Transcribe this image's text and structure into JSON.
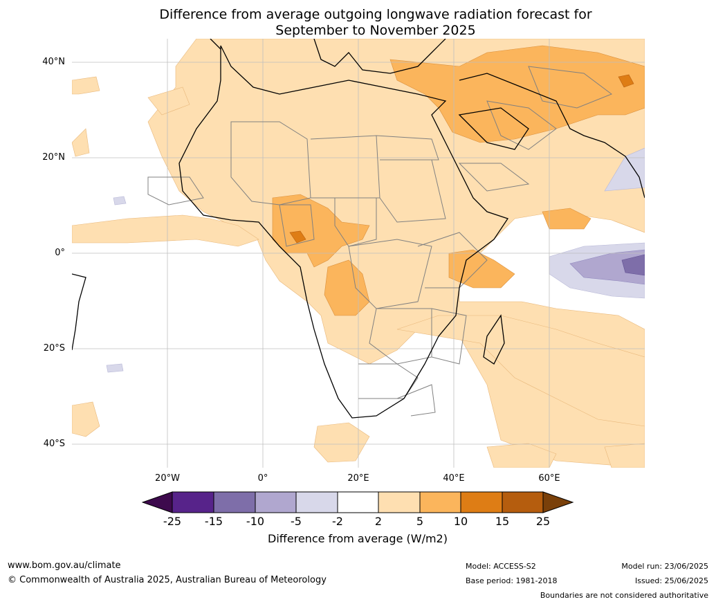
{
  "title_line1": "Difference from average outgoing longwave radiation forecast for",
  "title_line2": "September to November 2025",
  "lat_labels": [
    "40°N",
    "20°N",
    "0°",
    "20°S",
    "40°S"
  ],
  "lon_labels": [
    "20°W",
    "0°",
    "20°E",
    "40°E",
    "60°E"
  ],
  "colorbar": {
    "ticks": [
      "-25",
      "-15",
      "-10",
      "-5",
      "-2",
      "2",
      "5",
      "10",
      "15",
      "25"
    ],
    "colors": [
      "#3d0a4d",
      "#57238a",
      "#7e6ea9",
      "#b0a7cf",
      "#d8d8ea",
      "#ffffff",
      "#fedfb1",
      "#fbb55c",
      "#de7d15",
      "#b55d0e",
      "#7a400a"
    ],
    "label": "Difference from average (W/m2)"
  },
  "footer": {
    "url": "www.bom.gov.au/climate",
    "copyright": "© Commonwealth of Australia 2025, Australian Bureau of Meteorology",
    "model": "Model: ACCESS-S2",
    "base_period": "Base period: 1981-2018",
    "model_run": "Model run: 23/06/2025",
    "issued": "Issued: 25/06/2025",
    "disclaimer": "Boundaries are not considered authoritative"
  }
}
